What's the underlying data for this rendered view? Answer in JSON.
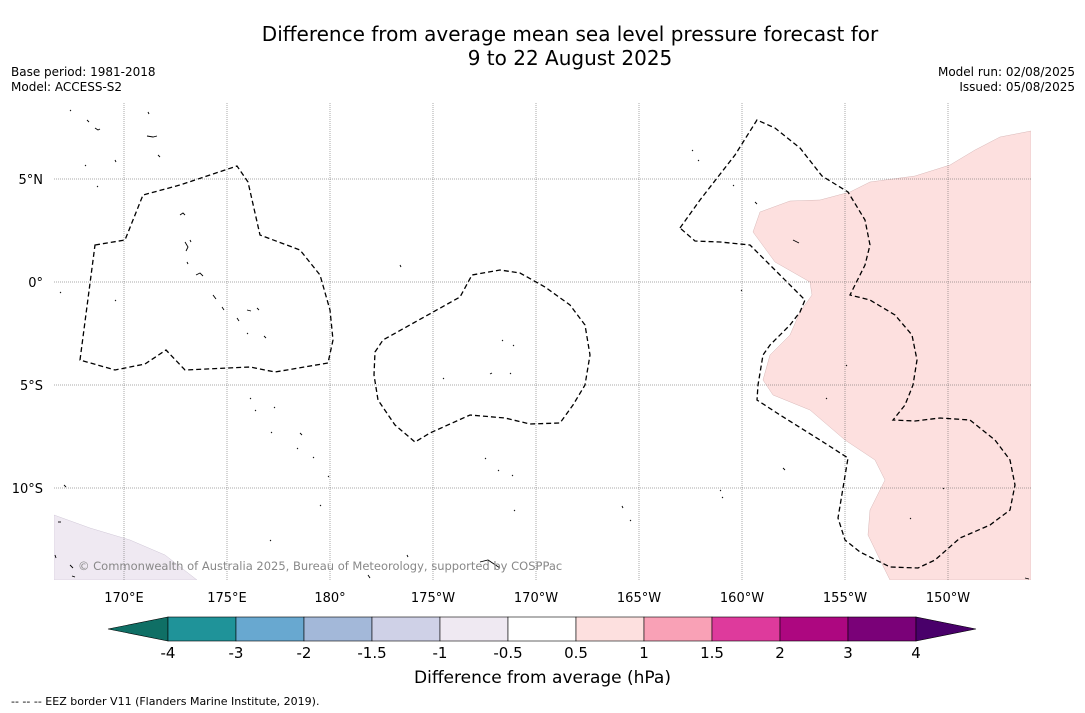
{
  "header": {
    "title_line1": "Difference from average mean sea level pressure forecast for",
    "title_line2": "9 to 22 August 2025",
    "base_period": "Base period: 1981-2018",
    "model": "Model: ACCESS-S2",
    "model_run": "Model run: 02/08/2025",
    "issued": "Issued: 05/08/2025"
  },
  "map": {
    "lat_labels": [
      "5°N",
      "0°",
      "5°S",
      "10°S"
    ],
    "lon_labels": [
      "170°E",
      "175°E",
      "180°",
      "175°W",
      "170°W",
      "165°W",
      "160°W",
      "155°W",
      "150°W"
    ],
    "copyright": "© Commonwealth of Australia 2025, Bureau of Meteorology, supported by COSPPac",
    "ocean_color": "#ffffff",
    "anomaly_positive_color": "#fde0df",
    "anomaly_slight_negative_color": "#efe9f2"
  },
  "colorbar": {
    "ticks": [
      "-4",
      "-3",
      "-2",
      "-1.5",
      "-1",
      "-0.5",
      "0.5",
      "1",
      "1.5",
      "2",
      "3",
      "4"
    ],
    "colors": [
      "#0f6f65",
      "#1f9399",
      "#68a8d0",
      "#a3b8d9",
      "#cfd1e7",
      "#efe9f2",
      "#ffffff",
      "#fde0df",
      "#f9a1b6",
      "#de3a9c",
      "#ad0780",
      "#7a0178",
      "#49006a"
    ],
    "label": "Difference from average (hPa)"
  },
  "legend": {
    "eez_label": "--  --  -- EEZ border V11 (Flanders Marine Institute, 2019)."
  }
}
